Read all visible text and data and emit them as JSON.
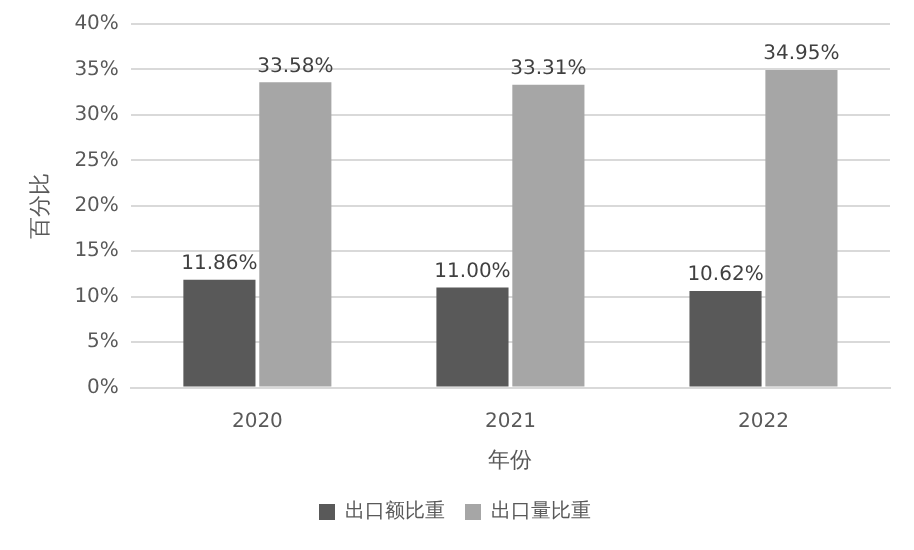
{
  "chart_data": {
    "type": "bar",
    "xlabel": "年份",
    "ylabel": "百分比",
    "categories": [
      "2020",
      "2021",
      "2022"
    ],
    "series": [
      {
        "name": "出口额比重",
        "color": "#595959",
        "values": [
          11.86,
          11.0,
          10.62
        ],
        "value_labels": [
          "11.86%",
          "11.00%",
          "10.62%"
        ]
      },
      {
        "name": "出口量比重",
        "color": "#a6a6a6",
        "values": [
          33.58,
          33.31,
          34.95
        ],
        "value_labels": [
          "33.58%",
          "33.31%",
          "34.95%"
        ]
      }
    ],
    "ylim": [
      0,
      40
    ],
    "yticks": [
      {
        "value": 0,
        "label": "0%"
      },
      {
        "value": 5,
        "label": "5%"
      },
      {
        "value": 10,
        "label": "10%"
      },
      {
        "value": 15,
        "label": "15%"
      },
      {
        "value": 20,
        "label": "20%"
      },
      {
        "value": 25,
        "label": "25%"
      },
      {
        "value": 30,
        "label": "30%"
      },
      {
        "value": 35,
        "label": "35%"
      },
      {
        "value": 40,
        "label": "40%"
      }
    ],
    "grid": "y",
    "legend": "bottom"
  }
}
